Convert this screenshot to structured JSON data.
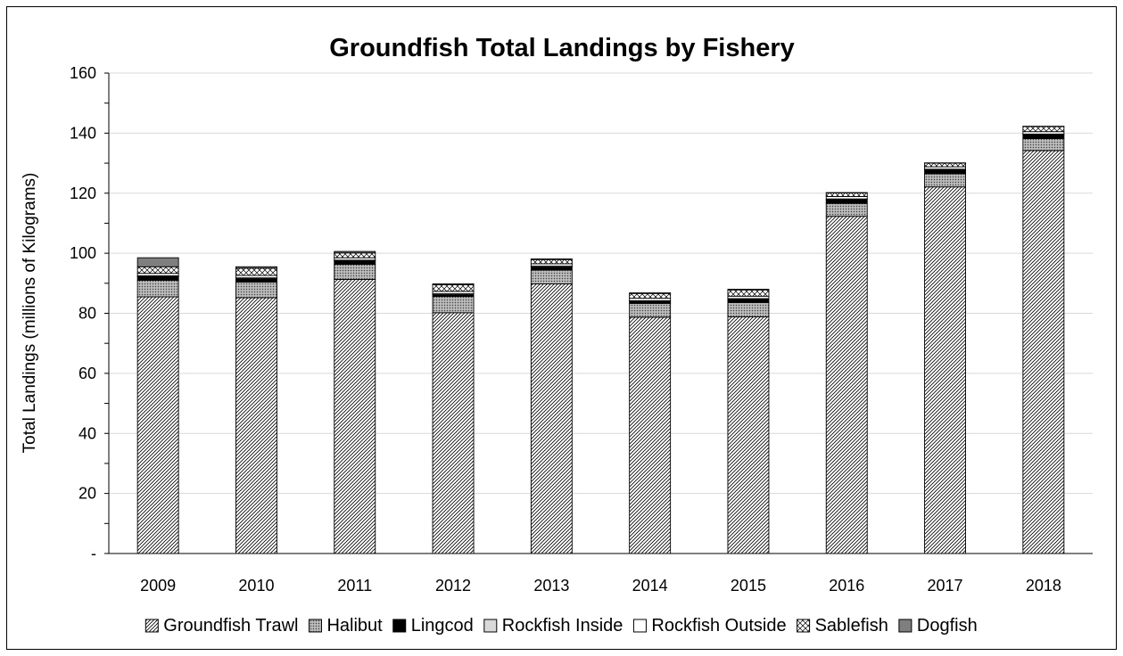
{
  "chart_data": {
    "type": "bar",
    "stacked": true,
    "title": "Groundfish Total Landings by Fishery",
    "xlabel": "",
    "ylabel": "Total Landings (millions of Kilograms)",
    "ylim": [
      0,
      160
    ],
    "ytick_values": [
      0,
      20,
      40,
      60,
      80,
      100,
      120,
      140,
      160
    ],
    "ytick_labels": [
      "-",
      "20",
      "40",
      "60",
      "80",
      "100",
      "120",
      "140",
      "160"
    ],
    "grid": true,
    "legend_position": "bottom",
    "categories": [
      "2009",
      "2010",
      "2011",
      "2012",
      "2013",
      "2014",
      "2015",
      "2016",
      "2017",
      "2018"
    ],
    "series": [
      {
        "name": "Groundfish Trawl",
        "fill": "pattern-diag",
        "values": [
          85.5,
          85.2,
          91.3,
          80.2,
          89.8,
          78.7,
          78.8,
          112.3,
          122.1,
          134.2
        ]
      },
      {
        "name": "Halibut",
        "fill": "pattern-dots-gray",
        "values": [
          5.5,
          5.2,
          5.0,
          5.4,
          4.6,
          4.6,
          4.8,
          4.3,
          4.4,
          4.0
        ]
      },
      {
        "name": "Lingcod",
        "fill": "#000000",
        "values": [
          1.2,
          1.1,
          1.1,
          0.6,
          1.0,
          0.6,
          1.0,
          1.2,
          1.2,
          1.2
        ]
      },
      {
        "name": "Rockfish Inside",
        "fill": "#d9d9d9",
        "values": [
          0.3,
          0.3,
          0.3,
          0.3,
          0.3,
          0.3,
          0.3,
          0.3,
          0.3,
          0.3
        ]
      },
      {
        "name": "Rockfish Outside",
        "fill": "#ffffff",
        "values": [
          0.8,
          0.8,
          0.8,
          0.8,
          0.8,
          0.8,
          0.8,
          0.8,
          0.8,
          0.8
        ]
      },
      {
        "name": "Sablefish",
        "fill": "pattern-sparse",
        "values": [
          2.2,
          2.4,
          1.6,
          2.2,
          1.4,
          1.6,
          2.1,
          1.2,
          1.2,
          1.7
        ]
      },
      {
        "name": "Dogfish",
        "fill": "#7f7f7f",
        "values": [
          3.0,
          0.5,
          0.5,
          0.3,
          0.2,
          0.2,
          0.2,
          0.1,
          0.1,
          0.1
        ]
      }
    ]
  }
}
